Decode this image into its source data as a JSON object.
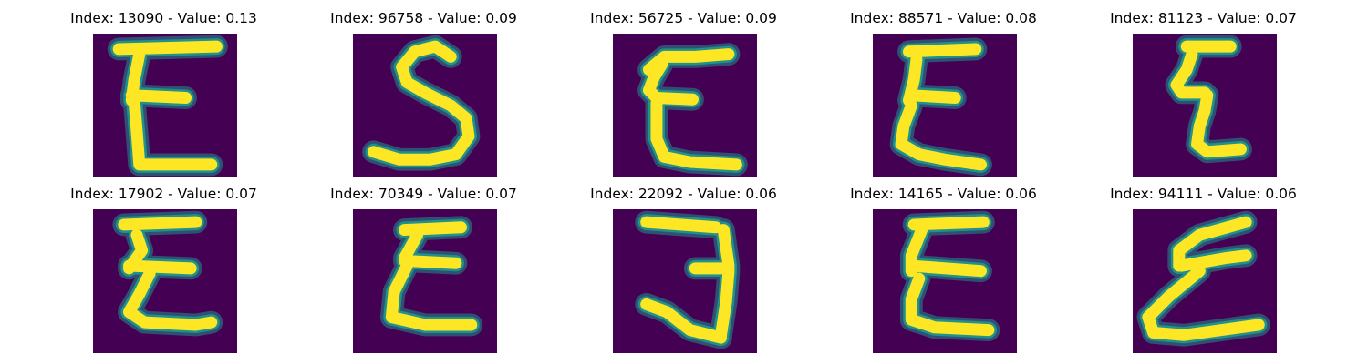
{
  "colors": {
    "background": "#440154",
    "mid": "#21918c",
    "stroke": "#fde725"
  },
  "samples": [
    {
      "title": "Index: 13090 - Value: 0.13",
      "glyph": "E"
    },
    {
      "title": "Index: 96758 - Value: 0.09",
      "glyph": "S"
    },
    {
      "title": "Index: 56725 - Value: 0.09",
      "glyph": "E"
    },
    {
      "title": "Index: 88571 - Value: 0.08",
      "glyph": "E"
    },
    {
      "title": "Index: 81123 - Value: 0.07",
      "glyph": "E"
    },
    {
      "title": "Index: 17902 - Value: 0.07",
      "glyph": "E"
    },
    {
      "title": "Index: 70349 - Value: 0.07",
      "glyph": "E"
    },
    {
      "title": "Index: 22092 - Value: 0.06",
      "glyph": "3"
    },
    {
      "title": "Index: 14165 - Value: 0.06",
      "glyph": "E"
    },
    {
      "title": "Index: 94111 - Value: 0.06",
      "glyph": "E"
    }
  ]
}
